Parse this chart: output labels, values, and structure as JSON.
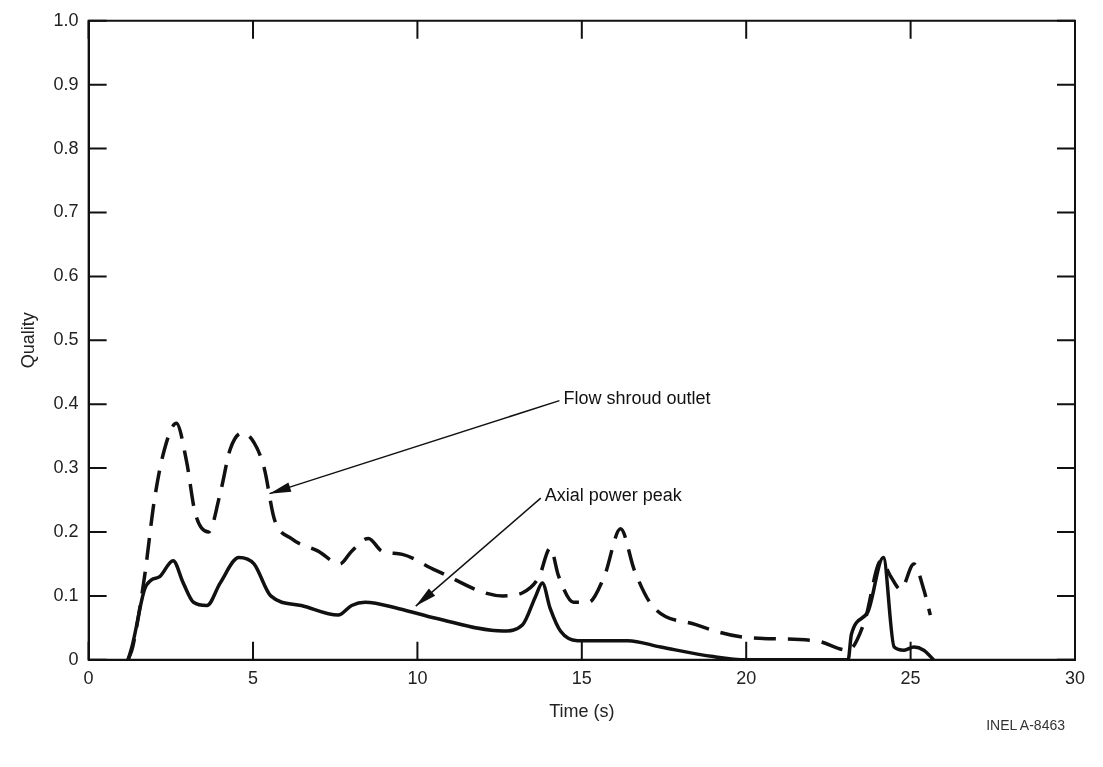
{
  "chart_data": {
    "type": "line",
    "xlabel": "Time (s)",
    "ylabel": "Quality",
    "xlim": [
      0,
      30
    ],
    "xticks": [
      0,
      5,
      10,
      15,
      20,
      25,
      30
    ],
    "ylim": [
      0,
      1
    ],
    "yticks": [
      0,
      0.1,
      0.2,
      0.3,
      0.4,
      0.5,
      0.6,
      0.7,
      0.8,
      0.9,
      {
        "value": 1,
        "label": "1.0"
      }
    ],
    "grid": false,
    "legend": false,
    "marker": "none",
    "series": [
      {
        "color": "#111111",
        "line_style": "dashed",
        "x": [
          1.2,
          1.34,
          1.7,
          2.0,
          2.31,
          2.67,
          2.98,
          3.24,
          3.65,
          4.0,
          4.31,
          4.67,
          5.03,
          5.34,
          5.65,
          6.16,
          6.98,
          7.64,
          8.0,
          8.51,
          8.92,
          9.54,
          10.56,
          12.6,
          13.2,
          13.7,
          14.04,
          14.3,
          14.75,
          15.2,
          15.68,
          16.18,
          16.6,
          17.14,
          18.47,
          20.0,
          22.1,
          23.1,
          23.6,
          24.1,
          24.4,
          24.7,
          25.1,
          25.4,
          25.6
        ],
        "values": [
          0,
          0.02,
          0.13,
          0.25,
          0.33,
          0.37,
          0.31,
          0.23,
          0.2,
          0.26,
          0.33,
          0.355,
          0.34,
          0.3,
          0.22,
          0.19,
          0.17,
          0.15,
          0.17,
          0.19,
          0.17,
          0.165,
          0.14,
          0.1,
          0.105,
          0.13,
          0.175,
          0.13,
          0.09,
          0.09,
          0.13,
          0.205,
          0.14,
          0.085,
          0.055,
          0.035,
          0.03,
          0.015,
          0.06,
          0.155,
          0.13,
          0.11,
          0.15,
          0.11,
          0.07
        ]
      },
      {
        "color": "#111111",
        "line_style": "solid",
        "x": [
          1.2,
          1.34,
          1.7,
          1.91,
          2.16,
          2.57,
          2.88,
          3.19,
          3.6,
          4.0,
          4.57,
          5.03,
          5.54,
          6.47,
          7.59,
          8.0,
          8.41,
          9.44,
          10.56,
          12.6,
          13.2,
          13.6,
          13.8,
          14.04,
          14.35,
          14.87,
          16.4,
          17.4,
          19.0,
          20.0,
          23.1,
          23.2,
          23.7,
          24.17,
          24.5,
          24.8,
          25.1,
          25.4,
          25.7
        ],
        "values": [
          0,
          0.025,
          0.11,
          0.125,
          0.13,
          0.155,
          0.12,
          0.09,
          0.085,
          0.12,
          0.16,
          0.15,
          0.1,
          0.085,
          0.07,
          0.085,
          0.09,
          0.08,
          0.065,
          0.045,
          0.055,
          0.1,
          0.12,
          0.08,
          0.045,
          0.03,
          0.03,
          0.02,
          0.005,
          0,
          0,
          0.04,
          0.075,
          0.16,
          0.02,
          0.015,
          0.02,
          0.015,
          0
        ]
      }
    ],
    "annotations": [
      {
        "text": "Flow shroud outlet",
        "x": 5.5,
        "y": 0.26
      },
      {
        "text": "Axial power peak",
        "x": 9.95,
        "y": 0.084
      },
      "INEL A-8463"
    ]
  }
}
